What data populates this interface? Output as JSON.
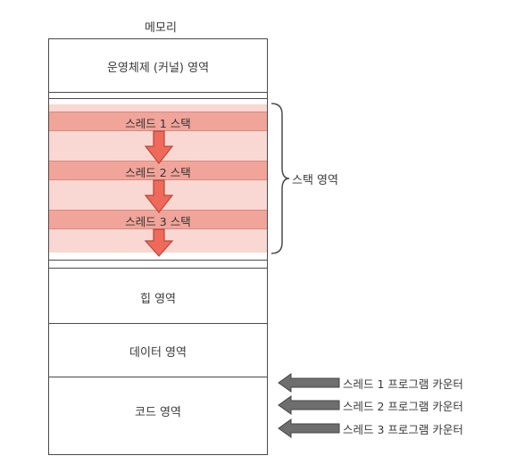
{
  "memory_title": "메모리",
  "segments": {
    "kernel": "운영체제 (커널) 영역",
    "heap": "힙 영역",
    "data": "데이터 영역",
    "code": "코드 영역"
  },
  "stacks": [
    {
      "label": "스레드 1 스택"
    },
    {
      "label": "스레드 2 스택"
    },
    {
      "label": "스레드 3 스택"
    }
  ],
  "stack_region_label": "스택 영역",
  "program_counters": [
    {
      "label": "스레드 1 프로그램 카운터"
    },
    {
      "label": "스레드 2 프로그램 카운터"
    },
    {
      "label": "스레드 3 프로그램 카운터"
    }
  ],
  "colors": {
    "stack_band": "#f1a49a",
    "stack_region": "#f9d7d2",
    "down_arrow": "#ef6a5a",
    "pc_arrow": "#6e6e6e"
  }
}
